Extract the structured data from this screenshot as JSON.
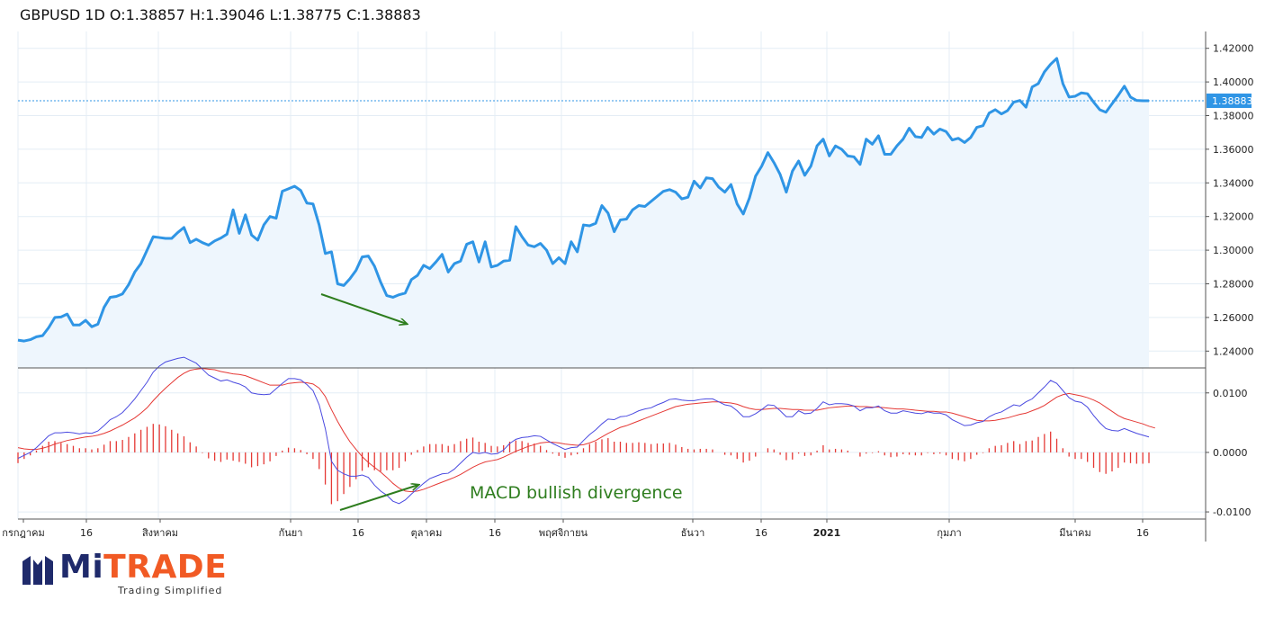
{
  "header": {
    "title": "GBPUSD 1D O:1.38857 H:1.39046 L:1.38775 C:1.38883"
  },
  "annotation": {
    "text": "MACD bullish divergence"
  },
  "logo": {
    "brand_mi": "MiTRADE",
    "tagline": "Trading Simplified"
  },
  "colors": {
    "price_line": "#2f95e5",
    "price_fill": "#eef6fd",
    "macd_line": "#4a4ae0",
    "signal_line": "#e53935",
    "histogram": "#e53935",
    "annotation": "#2e7d1e",
    "price_tag_bg": "#2f95e5",
    "grid": "#e4edf5"
  },
  "chart_data": [
    {
      "type": "line",
      "title": "GBPUSD 1D",
      "ylim": [
        1.23,
        1.43
      ],
      "yticks": [
        "1.24000",
        "1.26000",
        "1.28000",
        "1.30000",
        "1.32000",
        "1.34000",
        "1.36000",
        "1.38000",
        "1.40000",
        "1.42000"
      ],
      "last_price_label": "1.38883",
      "last_price": 1.38883,
      "x_labels": [
        "กรกฎาคม",
        "16",
        "สิงหาคม",
        "กันยา",
        "16",
        "ตุลาคม",
        "16",
        "พฤศจิกายน",
        "ธันวา",
        "16",
        "2021",
        "กุมภา",
        "มีนาคม",
        "16"
      ],
      "series": [
        {
          "values": [
            1.2465,
            1.246,
            1.2468,
            1.2485,
            1.2492,
            1.254,
            1.26,
            1.2603,
            1.262,
            1.2555,
            1.2555,
            1.2583,
            1.2545,
            1.256,
            1.266,
            1.272,
            1.2725,
            1.274,
            1.2795,
            1.287,
            1.292,
            1.3,
            1.308,
            1.3075,
            1.307,
            1.307,
            1.3105,
            1.3135,
            1.3045,
            1.3065,
            1.3045,
            1.303,
            1.3055,
            1.3072,
            1.3095,
            1.324,
            1.31,
            1.321,
            1.309,
            1.306,
            1.315,
            1.32,
            1.319,
            1.335,
            1.3365,
            1.338,
            1.3355,
            1.328,
            1.3275,
            1.315,
            1.298,
            1.299,
            1.28,
            1.279,
            1.283,
            1.288,
            1.296,
            1.2965,
            1.2905,
            1.281,
            1.273,
            1.272,
            1.2735,
            1.2745,
            1.2825,
            1.285,
            1.291,
            1.289,
            1.293,
            1.2975,
            1.287,
            1.292,
            1.2935,
            1.3035,
            1.305,
            1.293,
            1.305,
            1.29,
            1.291,
            1.2935,
            1.294,
            1.314,
            1.308,
            1.303,
            1.302,
            1.304,
            1.3,
            1.292,
            1.2955,
            1.292,
            1.305,
            1.299,
            1.315,
            1.3145,
            1.316,
            1.3265,
            1.322,
            1.311,
            1.318,
            1.3185,
            1.324,
            1.3265,
            1.326,
            1.329,
            1.332,
            1.335,
            1.336,
            1.3345,
            1.3305,
            1.3315,
            1.341,
            1.337,
            1.343,
            1.3425,
            1.3375,
            1.3345,
            1.339,
            1.3275,
            1.3215,
            1.331,
            1.344,
            1.35,
            1.358,
            1.352,
            1.345,
            1.3345,
            1.347,
            1.353,
            1.3445,
            1.35,
            1.362,
            1.366,
            1.356,
            1.362,
            1.36,
            1.356,
            1.3555,
            1.351,
            1.366,
            1.363,
            1.368,
            1.357,
            1.357,
            1.362,
            1.366,
            1.3725,
            1.3675,
            1.367,
            1.373,
            1.369,
            1.372,
            1.3705,
            1.3655,
            1.3665,
            1.364,
            1.367,
            1.373,
            1.374,
            1.3815,
            1.3835,
            1.381,
            1.383,
            1.388,
            1.389,
            1.385,
            1.397,
            1.399,
            1.406,
            1.4105,
            1.414,
            1.399,
            1.391,
            1.3915,
            1.3935,
            1.393,
            1.388,
            1.3835,
            1.382,
            1.387,
            1.392,
            1.3975,
            1.391,
            1.389,
            1.3888,
            1.3888
          ]
        }
      ]
    },
    {
      "type": "line",
      "title": "MACD",
      "ylim": [
        -0.0112,
        0.0142
      ],
      "yticks": [
        "0.0100",
        "0.0000",
        "-0.0100"
      ],
      "series": [
        {
          "name": "MACD",
          "values": [
            -0.001,
            -0.0005,
            0.0,
            0.0008,
            0.0018,
            0.0028,
            0.0033,
            0.0033,
            0.0034,
            0.0033,
            0.0031,
            0.0033,
            0.0032,
            0.0036,
            0.0045,
            0.0055,
            0.006,
            0.0067,
            0.0078,
            0.009,
            0.0104,
            0.0118,
            0.0135,
            0.0145,
            0.0152,
            0.0155,
            0.0158,
            0.016,
            0.0155,
            0.015,
            0.014,
            0.013,
            0.0125,
            0.012,
            0.0122,
            0.0118,
            0.0115,
            0.011,
            0.01,
            0.0098,
            0.0097,
            0.0098,
            0.0107,
            0.0116,
            0.0124,
            0.0124,
            0.0122,
            0.0114,
            0.0104,
            0.008,
            0.004,
            -0.0015,
            -0.003,
            -0.0036,
            -0.004,
            -0.004,
            -0.0038,
            -0.0042,
            -0.0055,
            -0.0065,
            -0.0072,
            -0.0082,
            -0.0086,
            -0.008,
            -0.007,
            -0.0061,
            -0.0052,
            -0.0044,
            -0.004,
            -0.0036,
            -0.0035,
            -0.0028,
            -0.0018,
            -0.0008,
            0.0,
            -0.0002,
            0.0,
            -0.0003,
            -0.0002,
            0.0004,
            0.0015,
            0.0022,
            0.0025,
            0.0026,
            0.0028,
            0.0027,
            0.0021,
            0.0015,
            0.001,
            0.0005,
            0.0008,
            0.0009,
            0.002,
            0.003,
            0.0038,
            0.0048,
            0.0056,
            0.0055,
            0.006,
            0.0061,
            0.0065,
            0.007,
            0.0073,
            0.0075,
            0.008,
            0.0084,
            0.0089,
            0.009,
            0.0088,
            0.0087,
            0.0087,
            0.0089,
            0.009,
            0.009,
            0.0085,
            0.008,
            0.0078,
            0.007,
            0.006,
            0.006,
            0.0065,
            0.0072,
            0.008,
            0.0079,
            0.007,
            0.006,
            0.006,
            0.007,
            0.0065,
            0.0066,
            0.0074,
            0.0085,
            0.008,
            0.0082,
            0.0082,
            0.0081,
            0.0078,
            0.007,
            0.0075,
            0.0075,
            0.0078,
            0.007,
            0.0066,
            0.0066,
            0.007,
            0.0068,
            0.0066,
            0.0065,
            0.0068,
            0.0066,
            0.0066,
            0.0063,
            0.0055,
            0.005,
            0.0045,
            0.0046,
            0.005,
            0.0052,
            0.006,
            0.0065,
            0.0068,
            0.0074,
            0.008,
            0.0078,
            0.0085,
            0.009,
            0.01,
            0.011,
            0.0121,
            0.0116,
            0.0104,
            0.0092,
            0.0086,
            0.0084,
            0.0076,
            0.0062,
            0.005,
            0.004,
            0.0037,
            0.0036,
            0.004,
            0.0036,
            0.0032,
            0.0029,
            0.0026
          ]
        },
        {
          "name": "Signal",
          "values": [
            0.0008,
            0.0006,
            0.0005,
            0.0005,
            0.0007,
            0.001,
            0.0014,
            0.0017,
            0.002,
            0.0022,
            0.0024,
            0.0026,
            0.0027,
            0.0029,
            0.0032,
            0.0036,
            0.0041,
            0.0046,
            0.0052,
            0.0058,
            0.0066,
            0.0075,
            0.0087,
            0.0098,
            0.0108,
            0.0117,
            0.0126,
            0.0133,
            0.0138,
            0.014,
            0.0141,
            0.014,
            0.0139,
            0.0136,
            0.0134,
            0.0132,
            0.0131,
            0.0129,
            0.0125,
            0.0121,
            0.0117,
            0.0113,
            0.0113,
            0.0113,
            0.0116,
            0.0117,
            0.0118,
            0.0117,
            0.0115,
            0.0108,
            0.0094,
            0.0072,
            0.0052,
            0.0034,
            0.0018,
            0.0005,
            -0.0007,
            -0.0017,
            -0.0025,
            -0.0033,
            -0.0042,
            -0.0052,
            -0.006,
            -0.0065,
            -0.0066,
            -0.0065,
            -0.0062,
            -0.0058,
            -0.0054,
            -0.005,
            -0.0046,
            -0.0042,
            -0.0037,
            -0.0031,
            -0.0025,
            -0.002,
            -0.0016,
            -0.0014,
            -0.0012,
            -0.0008,
            -0.0003,
            0.0002,
            0.0006,
            0.001,
            0.0013,
            0.0016,
            0.0017,
            0.0017,
            0.0016,
            0.0014,
            0.0013,
            0.0012,
            0.0013,
            0.0016,
            0.002,
            0.0026,
            0.0032,
            0.0037,
            0.0042,
            0.0045,
            0.0049,
            0.0053,
            0.0057,
            0.0061,
            0.0065,
            0.0069,
            0.0073,
            0.0077,
            0.0079,
            0.0081,
            0.0082,
            0.0083,
            0.0084,
            0.0085,
            0.0085,
            0.0084,
            0.0083,
            0.0081,
            0.0077,
            0.0074,
            0.0072,
            0.0072,
            0.0073,
            0.0074,
            0.0074,
            0.0073,
            0.0072,
            0.0072,
            0.0071,
            0.0071,
            0.0071,
            0.0073,
            0.0075,
            0.0076,
            0.0077,
            0.0078,
            0.0078,
            0.0077,
            0.0077,
            0.0076,
            0.0076,
            0.0075,
            0.0074,
            0.0073,
            0.0073,
            0.0072,
            0.0071,
            0.007,
            0.0069,
            0.0069,
            0.0068,
            0.0068,
            0.0066,
            0.0063,
            0.006,
            0.0057,
            0.0054,
            0.0053,
            0.0053,
            0.0054,
            0.0056,
            0.0058,
            0.0061,
            0.0064,
            0.0066,
            0.007,
            0.0074,
            0.0079,
            0.0086,
            0.0093,
            0.0097,
            0.0099,
            0.0097,
            0.0095,
            0.0092,
            0.0088,
            0.0083,
            0.0076,
            0.0069,
            0.0062,
            0.0057,
            0.0054,
            0.0051,
            0.0048,
            0.0044,
            0.0041
          ]
        }
      ],
      "histogram_type": "bar"
    }
  ]
}
